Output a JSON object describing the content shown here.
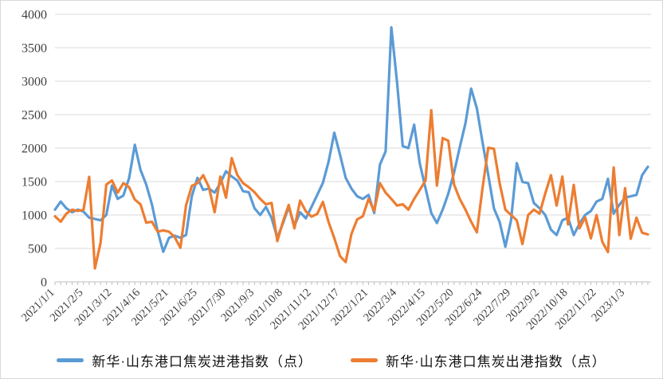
{
  "chart_data": {
    "type": "line",
    "title": "",
    "xlabel": "",
    "ylabel": "",
    "ylim": [
      0,
      4000
    ],
    "y_tick_step": 500,
    "y_tick_labels": [
      "0",
      "500",
      "1000",
      "1500",
      "2000",
      "2500",
      "3000",
      "3500",
      "4000"
    ],
    "grid": "horizontal",
    "legend_position": "bottom-center",
    "x_tick_labels": [
      "2021/1/1",
      "2021/2/5",
      "2021/3/12",
      "2021/4/16",
      "2021/5/21",
      "2021/6/25",
      "2021/7/30",
      "2021/9/3",
      "2021/10/8",
      "2021/11/12",
      "2021/12/17",
      "2022/1/21",
      "2022/3/4",
      "2022/4/15",
      "2022/5/20",
      "2022/6/24",
      "2022/7/29",
      "2022/9/2",
      "2022/10/18",
      "2022/11/22",
      "2023/1/3"
    ],
    "points_per_label_interval": 5,
    "series": [
      {
        "name": "新华·山东港口焦炭进港指数（点）",
        "color": "#5B9BD5",
        "values": [
          1080,
          1200,
          1100,
          1040,
          1080,
          1050,
          960,
          940,
          920,
          1000,
          1440,
          1240,
          1290,
          1550,
          2050,
          1675,
          1455,
          1160,
          760,
          450,
          660,
          690,
          660,
          700,
          1280,
          1555,
          1375,
          1395,
          1335,
          1475,
          1655,
          1575,
          1515,
          1355,
          1340,
          1100,
          1000,
          1120,
          955,
          660,
          880,
          1120,
          840,
          1040,
          950,
          1120,
          1300,
          1480,
          1800,
          2230,
          1900,
          1555,
          1395,
          1280,
          1240,
          1300,
          1030,
          1755,
          1950,
          3805,
          2990,
          2030,
          2000,
          2350,
          1770,
          1400,
          1030,
          880,
          1080,
          1320,
          1635,
          2010,
          2370,
          2890,
          2595,
          2090,
          1600,
          1100,
          895,
          525,
          920,
          1775,
          1495,
          1475,
          1180,
          1100,
          1000,
          780,
          700,
          920,
          960,
          700,
          870,
          1000,
          1060,
          1200,
          1240,
          1540,
          1020,
          1150,
          1260,
          1280,
          1300,
          1595,
          1720
        ]
      },
      {
        "name": "新华·山东港口焦炭出港指数（点）",
        "color": "#ED7D31",
        "values": [
          980,
          900,
          1020,
          1080,
          1060,
          1080,
          1570,
          200,
          585,
          1455,
          1515,
          1335,
          1475,
          1415,
          1230,
          1160,
          885,
          900,
          750,
          770,
          750,
          670,
          510,
          1145,
          1435,
          1475,
          1595,
          1415,
          1040,
          1575,
          1260,
          1850,
          1595,
          1475,
          1415,
          1340,
          1240,
          1160,
          1180,
          610,
          905,
          1150,
          800,
          1215,
          1055,
          975,
          1015,
          1195,
          890,
          655,
          385,
          295,
          715,
          935,
          980,
          1240,
          1060,
          1475,
          1335,
          1240,
          1140,
          1160,
          1080,
          1240,
          1375,
          1515,
          2565,
          1440,
          2150,
          2110,
          1455,
          1240,
          1080,
          900,
          740,
          1400,
          2005,
          1990,
          1475,
          1080,
          1000,
          920,
          565,
          1000,
          1080,
          1020,
          1320,
          1595,
          1140,
          1575,
          860,
          1450,
          800,
          965,
          650,
          1000,
          600,
          445,
          1710,
          700,
          1400,
          645,
          960,
          735,
          710
        ]
      }
    ],
    "colors": {
      "gridline": "#D9D9D9",
      "axis_line": "#BFBFBF",
      "tick_label": "#404040",
      "legend_text": "#111111",
      "background": "#FFFFFF"
    }
  }
}
